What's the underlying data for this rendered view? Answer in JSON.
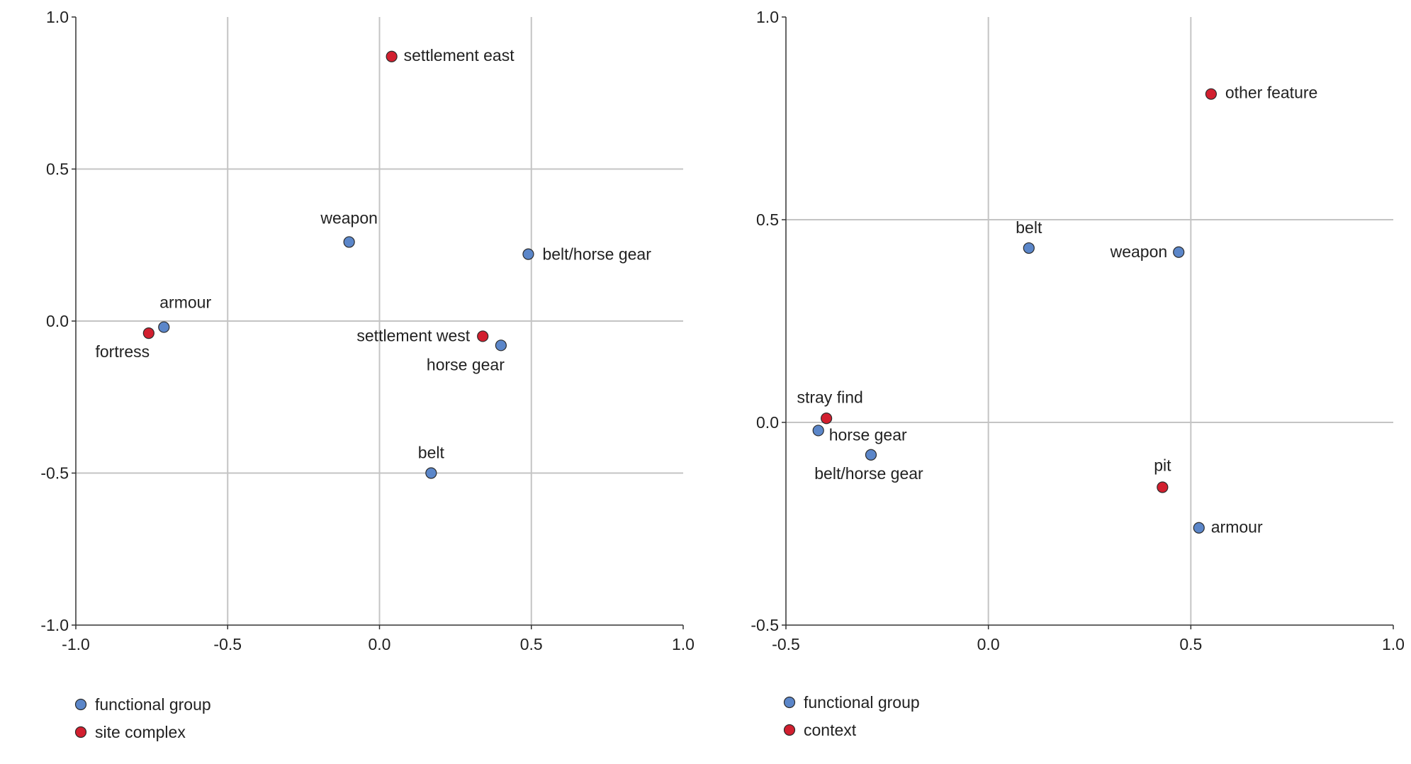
{
  "chart_data": [
    {
      "type": "scatter",
      "xlim": [
        -1.0,
        1.0
      ],
      "ylim": [
        -1.0,
        1.0
      ],
      "xticks": [
        "-1.0",
        "-0.5",
        "0.0",
        "0.5",
        "1.0"
      ],
      "yticks": [
        "-1.0",
        "-0.5",
        "0.0",
        "0.5",
        "1.0"
      ],
      "grid": true,
      "legend_position": "bottom-left",
      "series": [
        {
          "name": "functional group",
          "color": "#5b86c9",
          "points": [
            {
              "label": "weapon",
              "x": -0.1,
              "y": 0.26
            },
            {
              "label": "belt/horse gear",
              "x": 0.49,
              "y": 0.22
            },
            {
              "label": "armour",
              "x": -0.71,
              "y": -0.02
            },
            {
              "label": "horse gear",
              "x": 0.4,
              "y": -0.08
            },
            {
              "label": "belt",
              "x": 0.17,
              "y": -0.5
            }
          ]
        },
        {
          "name": "site complex",
          "color": "#d21f2f",
          "points": [
            {
              "label": "settlement east",
              "x": 0.04,
              "y": 0.87
            },
            {
              "label": "fortress",
              "x": -0.76,
              "y": -0.04
            },
            {
              "label": "settlement west",
              "x": 0.34,
              "y": -0.05
            }
          ]
        }
      ]
    },
    {
      "type": "scatter",
      "xlim": [
        -0.5,
        1.0
      ],
      "ylim": [
        -0.5,
        1.0
      ],
      "xticks": [
        "-0.5",
        "0.0",
        "0.5",
        "1.0"
      ],
      "yticks": [
        "-0.5",
        "0.0",
        "0.5",
        "1.0"
      ],
      "grid": true,
      "legend_position": "bottom-left",
      "series": [
        {
          "name": "functional group",
          "color": "#5b86c9",
          "points": [
            {
              "label": "belt",
              "x": 0.1,
              "y": 0.43
            },
            {
              "label": "weapon",
              "x": 0.47,
              "y": 0.42
            },
            {
              "label": "horse gear",
              "x": -0.42,
              "y": -0.02
            },
            {
              "label": "belt/horse gear",
              "x": -0.29,
              "y": -0.08
            },
            {
              "label": "armour",
              "x": 0.52,
              "y": -0.26
            }
          ]
        },
        {
          "name": "context",
          "color": "#d21f2f",
          "points": [
            {
              "label": "other feature",
              "x": 0.55,
              "y": 0.81
            },
            {
              "label": "stray find",
              "x": -0.4,
              "y": 0.01
            },
            {
              "label": "pit",
              "x": 0.43,
              "y": -0.16
            }
          ]
        }
      ]
    }
  ]
}
